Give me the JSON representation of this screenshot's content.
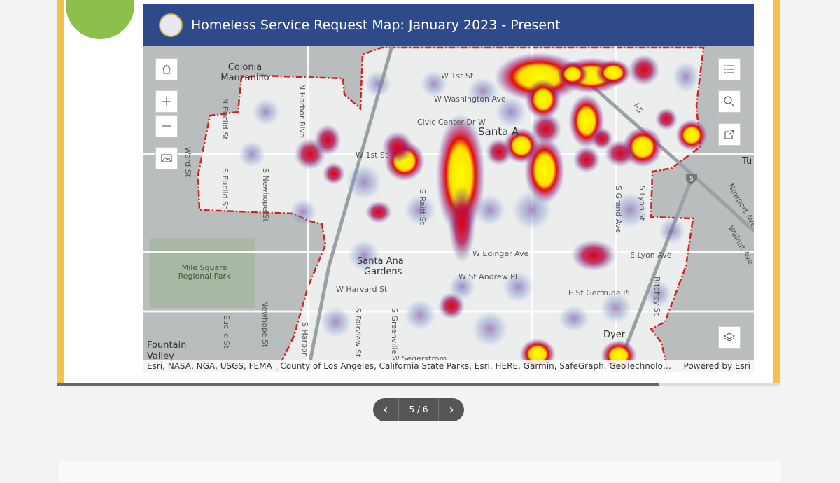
{
  "header": {
    "title": "Homeless Service Request Map: January 2023 - Present"
  },
  "map": {
    "labels": [
      "Colonia",
      "Manzanillo",
      "W 1st St",
      "W Washington Ave",
      "Civic Center Dr W",
      "Santa A",
      "W 1st St",
      "Santa Ana",
      "Gardens",
      "W Edinger Ave",
      "W St Andrew Pl",
      "W Harvard St",
      "E St Gertrude Pl",
      "Mile Square",
      "Regional Park",
      "Fountain",
      "Valley",
      "Dyer",
      "W Segerstrom",
      "Tu",
      "5",
      "E Lyon Ave",
      "Ward St",
      "S Euclid St",
      "S Newhope St",
      "N Harbor Blvd",
      "N Euclid St",
      "Newhope St",
      "Euclid St",
      "S Harbor",
      "S Fairview St",
      "S Greenville",
      "S Raitt St",
      "S Grand Ave",
      "S Lyon St",
      "Ritchey St",
      "Newport Ave",
      "Walnut Ave",
      "I-5"
    ],
    "attribution": "Esri, NASA, NGA, USGS, FEMA | County of Los Angeles, California State Parks, Esri, HERE, Garmin, SafeGraph, GeoTechnolog...",
    "powered_by": "Powered by Esri"
  },
  "pager": {
    "label": "5 / 6"
  }
}
